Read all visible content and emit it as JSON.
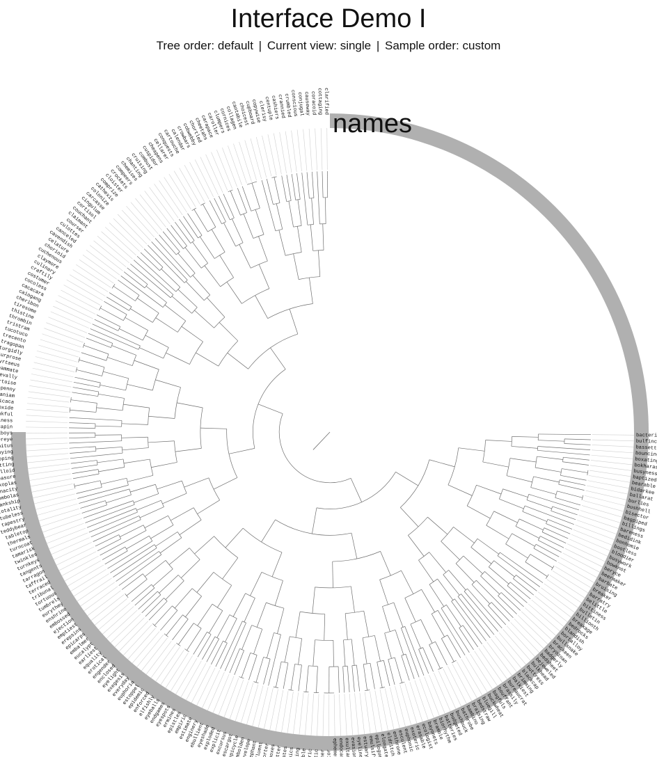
{
  "header": {
    "title": "Interface Demo I",
    "status": {
      "tree_order_label": "Tree order:",
      "tree_order_value": "default",
      "current_view_label": "Current view:",
      "current_view_value": "single",
      "sample_order_label": "Sample order:",
      "sample_order_value": "custom",
      "separator": "|"
    }
  },
  "layer": {
    "label": "names",
    "fill_color": "#b0b0b0"
  },
  "colors": {
    "branch": "#6e6e6e",
    "guide": "#cfcfcf",
    "text": "#111111"
  },
  "leaves": {
    "right_side": [
      "bacterin",
      "bulfinch",
      "bassetts",
      "bouncing",
      "boxating",
      "bokharas",
      "busyness",
      "baptized",
      "bearable",
      "bidarkee",
      "ballarat",
      "burlies",
      "bushhell",
      "bisector",
      "bagpiped",
      "billings",
      "bareness",
      "bedidink",
      "bonhomie",
      "bootless",
      "bloodier",
      "busywork",
      "bowknot",
      "beryce",
      "beermaker",
      "barbate",
      "bruising",
      "breaker",
      "barratry",
      "belittle",
      "bittiness",
      "bulletin",
      "billionth",
      "breakage",
      "bedrocks",
      "blandish",
      "bortalloy",
      "bullsnake",
      "brackeen",
      "bryozoan",
      "badgerly",
      "bedsheet",
      "bejeweled",
      "bulkhead",
      "buttress",
      "blackcap",
      "brimming",
      "balkiest",
      "bureaucrat",
      "brassily",
      "bouffant",
      "bagfuls",
      "buckwheat",
      "bluegill",
      "bedstraw",
      "braising",
      "bambino",
      "bathrobe",
      "bushbuck",
      "budgeted",
      "batteries",
      "biorhythm",
      "bramble",
      "bayonets"
    ],
    "left_side": [
      "clarified",
      "cottaging",
      "coracoid",
      "causeway",
      "conjugal",
      "conscious",
      "crumbled",
      "crannied",
      "cashiers",
      "centuple",
      "clerisy",
      "copywise",
      "cupboard",
      "choicest",
      "cantabile",
      "collagen",
      "cornices",
      "clumpers",
      "caroller",
      "carapace",
      "cheetahs",
      "chortled",
      "cobwebby",
      "crowbars",
      "calendar",
      "cartouche",
      "conquests",
      "cellarer",
      "cheapens",
      "cuspidor",
      "combust",
      "cruising",
      "chanting",
      "chemises",
      "compeers",
      "crockets",
      "cloister",
      "comprize",
      "cathexis",
      "colonize",
      "carcasse",
      "cingulum",
      "cortisol",
      "couchant",
      "claimant",
      "courser",
      "culottes",
      "canceled",
      "cavendish",
      "celature",
      "chorioid",
      "cuchenous",
      "claymore",
      "culinary",
      "craftily",
      "costumer",
      "cocoless",
      "cacacara",
      "caiogang",
      "cheribon",
      "tiresome",
      "thistine",
      "thrombin",
      "tristram",
      "tucotuco",
      "trecento",
      "tragopan",
      "turgidly",
      "turprose",
      "tyrtaeus",
      "teammate",
      "trevally",
      "tortoise",
      "tenpenny",
      "tuuaniam",
      "titicaca",
      "trioxide",
      "thankful",
      "tallness",
      "terrapin",
      "tallboys",
      "tigereye",
      "tinnitus",
      "tabbying",
      "tripping",
      "twitting",
      "thalloid",
      "treasure",
      "toxoplas",
      "tenacity",
      "tombolas",
      "tankship",
      "totality",
      "tubeless",
      "tapestry",
      "teddybear",
      "tabletop",
      "thermals",
      "turncoat",
      "tamarisk",
      "twinkles",
      "turnkeys",
      "tangents",
      "tarragon",
      "taffrail",
      "terraced",
      "tribunal",
      "tortuous",
      "tumbrels"
    ],
    "bottom_side": [
      "ecologist",
      "erasable",
      "exoteric",
      "euphonic",
      "esculent",
      "enthrone",
      "eldritch",
      "elongate",
      "epilogue",
      "emulsify",
      "estuary",
      "eyeliner",
      "evasion",
      "exultant",
      "endocarp",
      "ephemera",
      "elevator",
      "encipher",
      "eclectic",
      "esoteric",
      "expiable",
      "emerging",
      "eugenics",
      "exudates",
      "embitter",
      "equinoxes",
      "exporter",
      "effluent",
      "elephant",
      "envelope",
      "embolden",
      "epicycle",
      "escargot",
      "excursus",
      "explicit",
      "exploded",
      "eyeshade",
      "ebullient",
      "enginery",
      "estimate",
      "empiric",
      "epistles",
      "ermines",
      "eyespots",
      "endgames",
      "eyeballs",
      "elfishly",
      "enforced",
      "epidemic",
      "estoppel",
      "euphoria",
      "everyday",
      "exegesis",
      "eyelight",
      "enclosed",
      "engender",
      "erotical",
      "equality",
      "earliest",
      "eucalypt",
      "embalmer",
      "epicarps",
      "erepsins",
      "emptiest",
      "ejection",
      "embossed",
      "enshrine",
      "eurythmy"
    ]
  }
}
